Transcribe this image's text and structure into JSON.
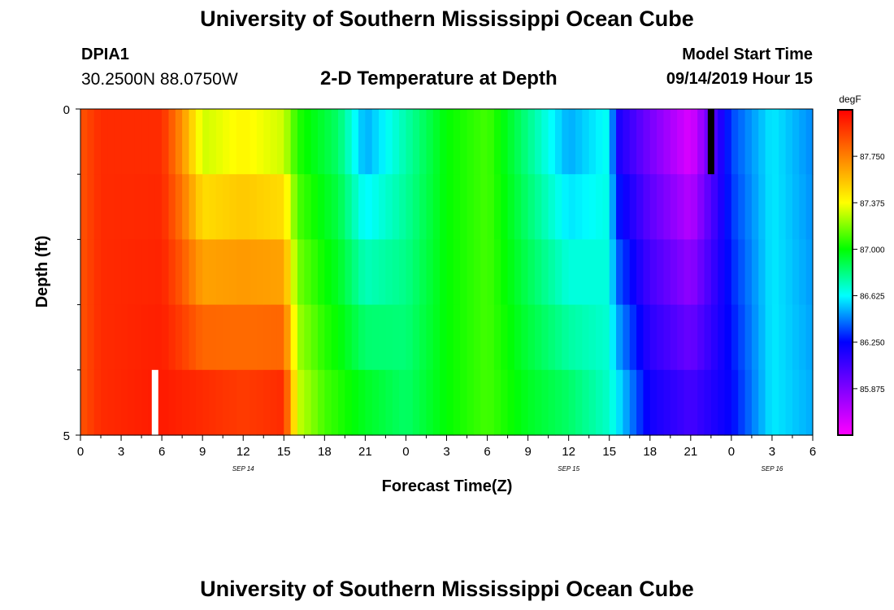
{
  "header": {
    "title": "University of Southern Mississippi Ocean Cube",
    "station_id": "DPIA1",
    "station_coords": "30.2500N 88.0750W",
    "model_label": "Model Start Time",
    "model_time": "09/14/2019 Hour 15",
    "subtitle": "2-D Temperature at Depth",
    "footer_title": "University of Southern Mississippi Ocean Cube"
  },
  "chart_data": {
    "type": "heatmap",
    "xlabel": "Forecast Time(Z)",
    "ylabel": "Depth (ft)",
    "x_tick_labels": [
      "0",
      "3",
      "6",
      "9",
      "12",
      "15",
      "18",
      "21",
      "0",
      "3",
      "6",
      "9",
      "12",
      "15",
      "18",
      "21",
      "0",
      "3",
      "6"
    ],
    "x_ticks_hours": [
      0,
      3,
      6,
      9,
      12,
      15,
      18,
      21,
      24,
      27,
      30,
      33,
      36,
      39,
      42,
      45,
      48,
      51,
      54
    ],
    "date_labels": [
      {
        "hour": 12,
        "label": "SEP 14"
      },
      {
        "hour": 36,
        "label": "SEP 15"
      },
      {
        "hour": 51,
        "label": "SEP 16"
      }
    ],
    "x_range_hours": [
      0,
      54
    ],
    "y_range_ft": [
      0,
      5
    ],
    "y_tick_labels": [
      "0",
      "5"
    ],
    "depth_levels": 5,
    "time_step_hours": 0.5,
    "colorbar": {
      "unit": "degF",
      "ticks": [
        "87.750",
        "87.375",
        "87.000",
        "86.625",
        "86.250",
        "85.875"
      ],
      "min": 85.5,
      "max": 88.125,
      "colors": [
        "#ff00ff",
        "#8000ff",
        "#0000ff",
        "#00ffff",
        "#00ff00",
        "#ffff00",
        "#ff8000",
        "#ff0000"
      ]
    },
    "profile_surface_degF": [
      {
        "hour": 0,
        "value": 87.88
      },
      {
        "hour": 1.5,
        "value": 88.0
      },
      {
        "hour": 6,
        "value": 88.0
      },
      {
        "hour": 7.5,
        "value": 87.7
      },
      {
        "hour": 9,
        "value": 87.3
      },
      {
        "hour": 12,
        "value": 87.4
      },
      {
        "hour": 15,
        "value": 87.3
      },
      {
        "hour": 16,
        "value": 87.05
      },
      {
        "hour": 19,
        "value": 86.85
      },
      {
        "hour": 21,
        "value": 86.5
      },
      {
        "hour": 24,
        "value": 86.75
      },
      {
        "hour": 27,
        "value": 87.0
      },
      {
        "hour": 30,
        "value": 87.1
      },
      {
        "hour": 32.5,
        "value": 86.85
      },
      {
        "hour": 36,
        "value": 86.5
      },
      {
        "hour": 39,
        "value": 86.65
      },
      {
        "hour": 39.5,
        "value": 86.2
      },
      {
        "hour": 42,
        "value": 85.9
      },
      {
        "hour": 45,
        "value": 85.6
      },
      {
        "hour": 48,
        "value": 86.35
      },
      {
        "hour": 51,
        "value": 86.6
      },
      {
        "hour": 54,
        "value": 86.45
      }
    ],
    "profile_bottom_degF": [
      {
        "hour": 0,
        "value": 87.88
      },
      {
        "hour": 1.5,
        "value": 88.0
      },
      {
        "hour": 6,
        "value": 88.05
      },
      {
        "hour": 9,
        "value": 88.0
      },
      {
        "hour": 12,
        "value": 87.95
      },
      {
        "hour": 15,
        "value": 88.0
      },
      {
        "hour": 16,
        "value": 87.3
      },
      {
        "hour": 18,
        "value": 87.1
      },
      {
        "hour": 21,
        "value": 86.95
      },
      {
        "hour": 24,
        "value": 86.85
      },
      {
        "hour": 27,
        "value": 87.0
      },
      {
        "hour": 30,
        "value": 87.1
      },
      {
        "hour": 33,
        "value": 86.95
      },
      {
        "hour": 36,
        "value": 86.85
      },
      {
        "hour": 39,
        "value": 86.7
      },
      {
        "hour": 42,
        "value": 86.2
      },
      {
        "hour": 45,
        "value": 86.05
      },
      {
        "hour": 48,
        "value": 86.25
      },
      {
        "hour": 51,
        "value": 86.6
      },
      {
        "hour": 54,
        "value": 86.5
      }
    ],
    "markers": [
      {
        "hour": 5.5,
        "depth_ft": 5,
        "color": "#ffffff"
      },
      {
        "hour": 46.5,
        "depth_ft": 0,
        "color": "#000000"
      }
    ]
  }
}
